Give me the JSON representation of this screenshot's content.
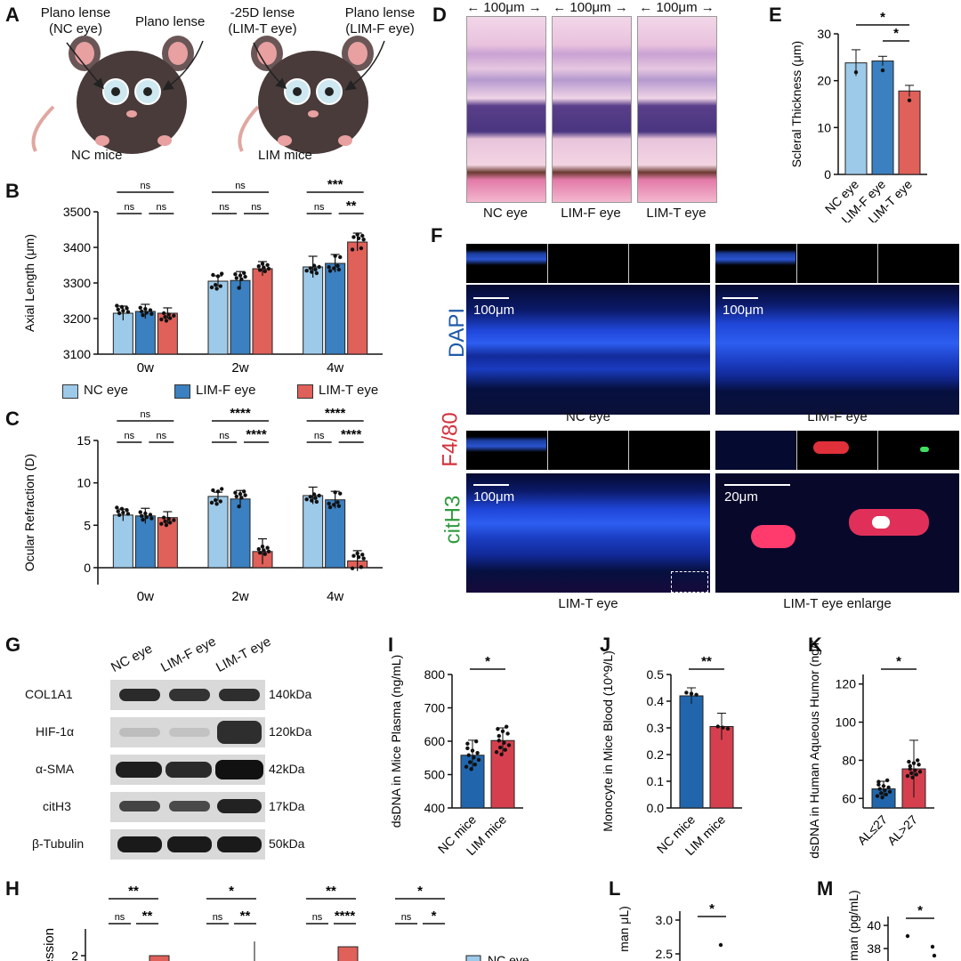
{
  "panels": {
    "A": "A",
    "B": "B",
    "C": "C",
    "D": "D",
    "E": "E",
    "F": "F",
    "G": "G",
    "H": "H",
    "I": "I",
    "J": "J",
    "K": "K",
    "L": "L",
    "M": "M"
  },
  "panelA": {
    "nc_left": "Plano lense\n(NC eye)",
    "nc_right": "Plano lense",
    "lim_left": "-25D lense\n(LIM-T eye)",
    "lim_right": "Plano lense\n(LIM-F eye)",
    "nc_caption": "NC mice",
    "lim_caption": "LIM mice"
  },
  "legend": {
    "nc": "NC eye",
    "limf": "LIM-F eye",
    "limt": "LIM-T eye"
  },
  "colors": {
    "nc": "#9ecae9",
    "limf": "#3b80c0",
    "limt": "#e0605a",
    "nc_dark": "#2166ac",
    "lim_dark": "#d6404e"
  },
  "chart_data": [
    {
      "id": "B",
      "type": "bar",
      "ylabel": "Axial Length (μm)",
      "ylim": [
        3100,
        3500
      ],
      "yticks": [
        3100,
        3200,
        3300,
        3400,
        3500
      ],
      "categories": [
        "0w",
        "2w",
        "4w"
      ],
      "series": [
        {
          "name": "NC eye",
          "values": [
            3215,
            3305,
            3345
          ]
        },
        {
          "name": "LIM-F eye",
          "values": [
            3220,
            3307,
            3355
          ]
        },
        {
          "name": "LIM-T eye",
          "values": [
            3215,
            3340,
            3415
          ]
        }
      ],
      "errors": [
        [
          20,
          20,
          15
        ],
        [
          15,
          25,
          20
        ],
        [
          30,
          25,
          25
        ]
      ],
      "sig": [
        [
          "ns",
          "ns",
          "ns"
        ],
        [
          "ns",
          "ns",
          "ns"
        ],
        [
          "***",
          "ns",
          "**"
        ]
      ]
    },
    {
      "id": "C",
      "type": "bar",
      "ylabel": "Ocular Refraction (D)",
      "ylim": [
        -2,
        15
      ],
      "yticks": [
        0,
        5,
        10,
        15
      ],
      "categories": [
        "0w",
        "2w",
        "4w"
      ],
      "series": [
        {
          "name": "NC eye",
          "values": [
            6.2,
            8.4,
            8.5
          ]
        },
        {
          "name": "LIM-F eye",
          "values": [
            6.1,
            8.1,
            8.0
          ]
        },
        {
          "name": "LIM-T eye",
          "values": [
            5.9,
            1.9,
            0.8
          ]
        }
      ],
      "errors": [
        [
          0.7,
          0.9,
          0.7
        ],
        [
          0.5,
          1.0,
          1.5
        ],
        [
          1.0,
          1.0,
          1.2
        ]
      ],
      "sig": [
        [
          "ns",
          "ns",
          "ns"
        ],
        [
          "****",
          "ns",
          "****"
        ],
        [
          "****",
          "ns",
          "****"
        ]
      ]
    },
    {
      "id": "E",
      "type": "bar",
      "ylabel": "Scleral Thickness (μm)",
      "ylim": [
        0,
        30
      ],
      "yticks": [
        0,
        10,
        20,
        30
      ],
      "categories": [
        "NC eye",
        "LIM-F eye",
        "LIM-T eye"
      ],
      "values": [
        23.8,
        24.2,
        17.8
      ],
      "errors": [
        2.8,
        1.0,
        1.2
      ],
      "sig": [
        "*",
        "*"
      ]
    },
    {
      "id": "I",
      "type": "bar",
      "ylabel": "dsDNA in Mice Plasma (ng/mL)",
      "ylim": [
        400,
        800
      ],
      "yticks": [
        400,
        500,
        600,
        700,
        800
      ],
      "categories": [
        "NC mice",
        "LIM mice"
      ],
      "values": [
        558,
        602
      ],
      "errors": [
        45,
        38
      ],
      "sig": "*"
    },
    {
      "id": "J",
      "type": "bar",
      "ylabel": "Monocyte in Mice Blood (10^9/L)",
      "ylim": [
        0,
        0.5
      ],
      "yticks": [
        0.0,
        0.1,
        0.2,
        0.3,
        0.4,
        0.5
      ],
      "categories": [
        "NC mice",
        "LIM mice"
      ],
      "values": [
        0.42,
        0.305
      ],
      "errors": [
        0.03,
        0.05
      ],
      "sig": "**"
    },
    {
      "id": "K",
      "type": "bar",
      "ylabel": "dsDNA in Human Aqueous Humor (ng/mL)",
      "ylim": [
        55,
        125
      ],
      "yticks": [
        60,
        80,
        100,
        120
      ],
      "categories": [
        "AL≤27",
        "AL>27"
      ],
      "values": [
        65,
        75.5
      ],
      "errors": [
        4,
        15
      ],
      "sig": "*"
    },
    {
      "id": "H",
      "type": "bar",
      "ylabel": "Expression",
      "yticks": [
        2
      ],
      "groups": [
        "COL1A1",
        "HIF-1α",
        "α-SMA",
        "citH3"
      ],
      "sig_top": [
        "**",
        "*",
        "**",
        "*"
      ],
      "sig_mid": [
        [
          "ns",
          "**"
        ],
        [
          "ns",
          "**"
        ],
        [
          "ns",
          "****"
        ],
        [
          "ns",
          "*"
        ]
      ],
      "legend_label": "NC eye"
    },
    {
      "id": "L",
      "type": "scatter",
      "ylabel": "man μL)",
      "yticks": [
        2.5,
        3.0
      ],
      "sig": "*"
    },
    {
      "id": "M",
      "type": "scatter",
      "ylabel": "man (pg/mL)",
      "yticks": [
        38,
        40
      ],
      "sig": "*"
    }
  ],
  "panelD": {
    "scale": "100μm",
    "captions": [
      "NC eye",
      "LIM-F eye",
      "LIM-T eye"
    ]
  },
  "panelF": {
    "stains": [
      "DAPI",
      "F4/80",
      "citH3"
    ],
    "scale100": "100μm",
    "scale20": "20μm",
    "captions": [
      "NC eye",
      "LIM-F eye",
      "LIM-T eye",
      "LIM-T eye enlarge"
    ]
  },
  "panelG": {
    "columns": [
      "NC eye",
      "LIM-F eye",
      "LIM-T eye"
    ],
    "rows": [
      {
        "name": "COL1A1",
        "kda": "140kDa"
      },
      {
        "name": "HIF-1α",
        "kda": "120kDa"
      },
      {
        "name": "α-SMA",
        "kda": "42kDa"
      },
      {
        "name": "citH3",
        "kda": "17kDa"
      },
      {
        "name": "β-Tubulin",
        "kda": "50kDa"
      }
    ]
  }
}
